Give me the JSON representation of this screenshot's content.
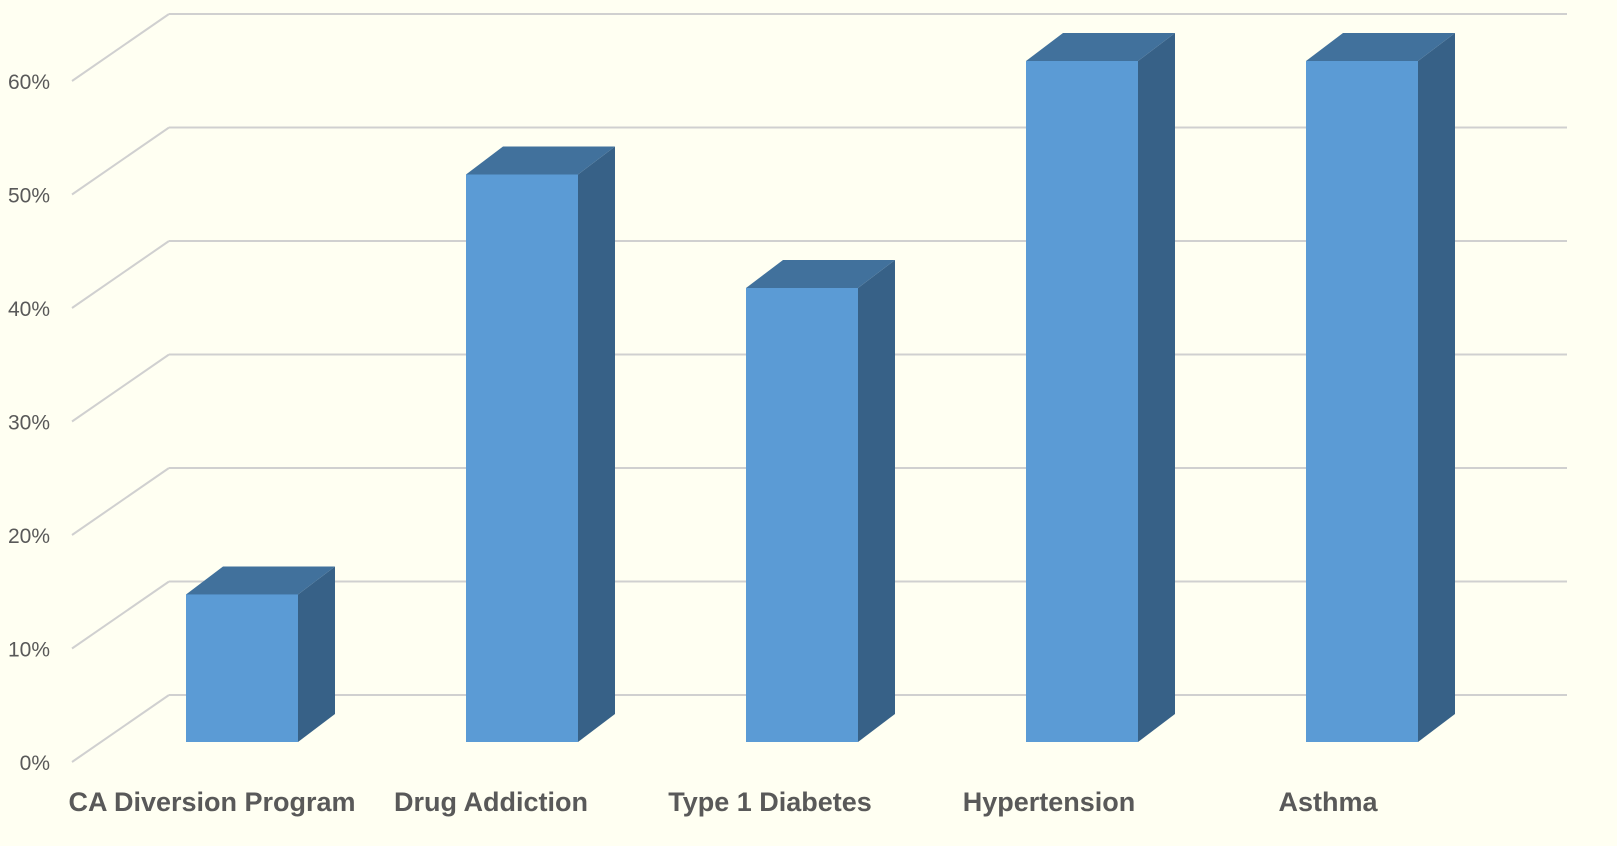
{
  "chart_data": {
    "type": "bar",
    "title": "",
    "xlabel": "",
    "ylabel": "",
    "categories": [
      "CA Diversion Program",
      "Drug Addiction",
      "Type 1 Diabetes",
      "Hypertension",
      "Asthma"
    ],
    "values": [
      13,
      50,
      40,
      60,
      60
    ],
    "yticks": [
      "0%",
      "10%",
      "20%",
      "30%",
      "40%",
      "50%",
      "60%"
    ],
    "ylim": [
      0,
      60
    ],
    "y_unit": "%",
    "grid": true,
    "legend": "none",
    "style": "3d-column",
    "colors": {
      "bar_front": "#5b9bd5",
      "bar_side": "#376187",
      "bar_top": "#41719c",
      "gridline": "#d0d0d0",
      "background": "#fffff2",
      "text": "#595959"
    }
  }
}
